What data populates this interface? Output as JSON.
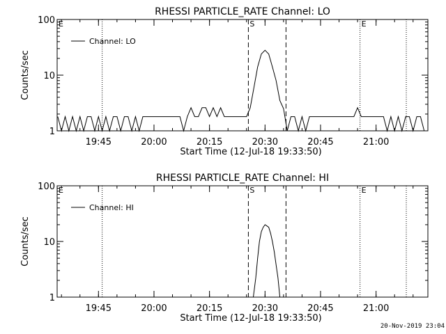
{
  "footer_stamp": "20-Nov-2019 23:04",
  "chart_data": [
    {
      "type": "line",
      "title": "RHESSI PARTICLE_RATE Channel: LO",
      "xlabel": "Start Time (12-Jul-18 19:33:50)",
      "ylabel": "Counts/sec",
      "yscale": "log",
      "ylim": [
        1,
        100
      ],
      "xlim": [
        "19:33:50",
        "21:14:00"
      ],
      "x_ticks": [
        "19:45",
        "20:00",
        "20:15",
        "20:30",
        "20:45",
        "21:00"
      ],
      "y_ticks": [
        "1",
        "10",
        "100"
      ],
      "legend": {
        "placement": "top-left",
        "entries": [
          "Channel: LO"
        ]
      },
      "markers": [
        {
          "label": "E",
          "time": "19:33:50",
          "style": "dotted"
        },
        {
          "label": "",
          "time": "19:46:00",
          "style": "dotted"
        },
        {
          "label": "S",
          "time": "20:25:30",
          "style": "dashed"
        },
        {
          "label": "",
          "time": "20:35:40",
          "style": "dashed"
        },
        {
          "label": "E",
          "time": "20:55:40",
          "style": "dotted"
        },
        {
          "label": "",
          "time": "21:08:10",
          "style": "dotted"
        }
      ],
      "series": [
        {
          "name": "Channel: LO",
          "x": [
            "19:34:00",
            "19:35:00",
            "19:36:00",
            "19:37:00",
            "19:38:00",
            "19:39:00",
            "19:40:00",
            "19:41:00",
            "19:42:00",
            "19:43:00",
            "19:44:00",
            "19:45:00",
            "19:46:00",
            "19:47:00",
            "19:48:00",
            "19:49:00",
            "19:50:00",
            "19:51:00",
            "19:52:00",
            "19:53:00",
            "19:54:00",
            "19:55:00",
            "19:56:00",
            "19:57:00",
            "19:58:00",
            "19:59:00",
            "20:01:00",
            "20:04:00",
            "20:06:00",
            "20:07:00",
            "20:08:00",
            "20:09:00",
            "20:10:00",
            "20:11:00",
            "20:12:00",
            "20:13:00",
            "20:14:00",
            "20:15:00",
            "20:16:00",
            "20:17:00",
            "20:18:00",
            "20:19:00",
            "20:20:00",
            "20:22:00",
            "20:24:00",
            "20:25:00",
            "20:26:00",
            "20:27:00",
            "20:28:00",
            "20:29:00",
            "20:30:00",
            "20:31:00",
            "20:32:00",
            "20:33:00",
            "20:34:00",
            "20:35:00",
            "20:36:00",
            "20:37:00",
            "20:38:00",
            "20:39:00",
            "20:40:00",
            "20:41:00",
            "20:42:00",
            "20:44:00",
            "20:46:00",
            "20:48:00",
            "20:50:00",
            "20:52:00",
            "20:54:00",
            "20:55:00",
            "20:56:00",
            "20:58:00",
            "21:00:00",
            "21:02:00",
            "21:03:00",
            "21:04:00",
            "21:05:00",
            "21:06:00",
            "21:07:00",
            "21:08:00",
            "21:09:00",
            "21:10:00",
            "21:11:00",
            "21:12:00",
            "21:13:00"
          ],
          "y": [
            1.8,
            1,
            1.8,
            1,
            1.8,
            1,
            1.8,
            1,
            1.8,
            1.8,
            1,
            1.8,
            1,
            1.8,
            1,
            1.8,
            1.8,
            1,
            1.8,
            1.8,
            1,
            1.8,
            1,
            1.8,
            1.8,
            1.8,
            1.8,
            1.8,
            1.8,
            1.8,
            1,
            1.8,
            2.6,
            1.8,
            1.8,
            2.6,
            2.6,
            1.8,
            2.6,
            1.8,
            2.6,
            1.8,
            1.8,
            1.8,
            1.8,
            1.8,
            2.6,
            6,
            14,
            24,
            28,
            24,
            14,
            8,
            3.5,
            2.5,
            1,
            1.8,
            1.8,
            1,
            1.8,
            1,
            1.8,
            1.8,
            1.8,
            1.8,
            1.8,
            1.8,
            1.8,
            2.6,
            1.8,
            1.8,
            1.8,
            1.8,
            1,
            1.8,
            1,
            1.8,
            1,
            1.8,
            1.8,
            1,
            1.8,
            1.8,
            1
          ]
        }
      ]
    },
    {
      "type": "line",
      "title": "RHESSI PARTICLE_RATE Channel: HI",
      "xlabel": "Start Time (12-Jul-18 19:33:50)",
      "ylabel": "Counts/sec",
      "yscale": "log",
      "ylim": [
        1,
        100
      ],
      "xlim": [
        "19:33:50",
        "21:14:00"
      ],
      "x_ticks": [
        "19:45",
        "20:00",
        "20:15",
        "20:30",
        "20:45",
        "21:00"
      ],
      "y_ticks": [
        "1",
        "10",
        "100"
      ],
      "legend": {
        "placement": "top-left",
        "entries": [
          "Channel: HI"
        ]
      },
      "markers": [
        {
          "label": "E",
          "time": "19:33:50",
          "style": "dotted"
        },
        {
          "label": "",
          "time": "19:46:00",
          "style": "dotted"
        },
        {
          "label": "S",
          "time": "20:25:30",
          "style": "dashed"
        },
        {
          "label": "",
          "time": "20:35:40",
          "style": "dashed"
        },
        {
          "label": "E",
          "time": "20:55:40",
          "style": "dotted"
        },
        {
          "label": "",
          "time": "21:08:10",
          "style": "dotted"
        }
      ],
      "series": [
        {
          "name": "Channel: HI",
          "x": [
            "20:26:50",
            "20:27:30",
            "20:28:00",
            "20:28:30",
            "20:29:00",
            "20:29:30",
            "20:30:00",
            "20:30:30",
            "20:31:00",
            "20:31:30",
            "20:32:00",
            "20:32:30",
            "20:33:00",
            "20:33:30",
            "20:34:00"
          ],
          "y": [
            1,
            2.2,
            5,
            10,
            15,
            18,
            20,
            19,
            18,
            14,
            10,
            6.5,
            3.8,
            2.2,
            1
          ]
        }
      ]
    }
  ]
}
